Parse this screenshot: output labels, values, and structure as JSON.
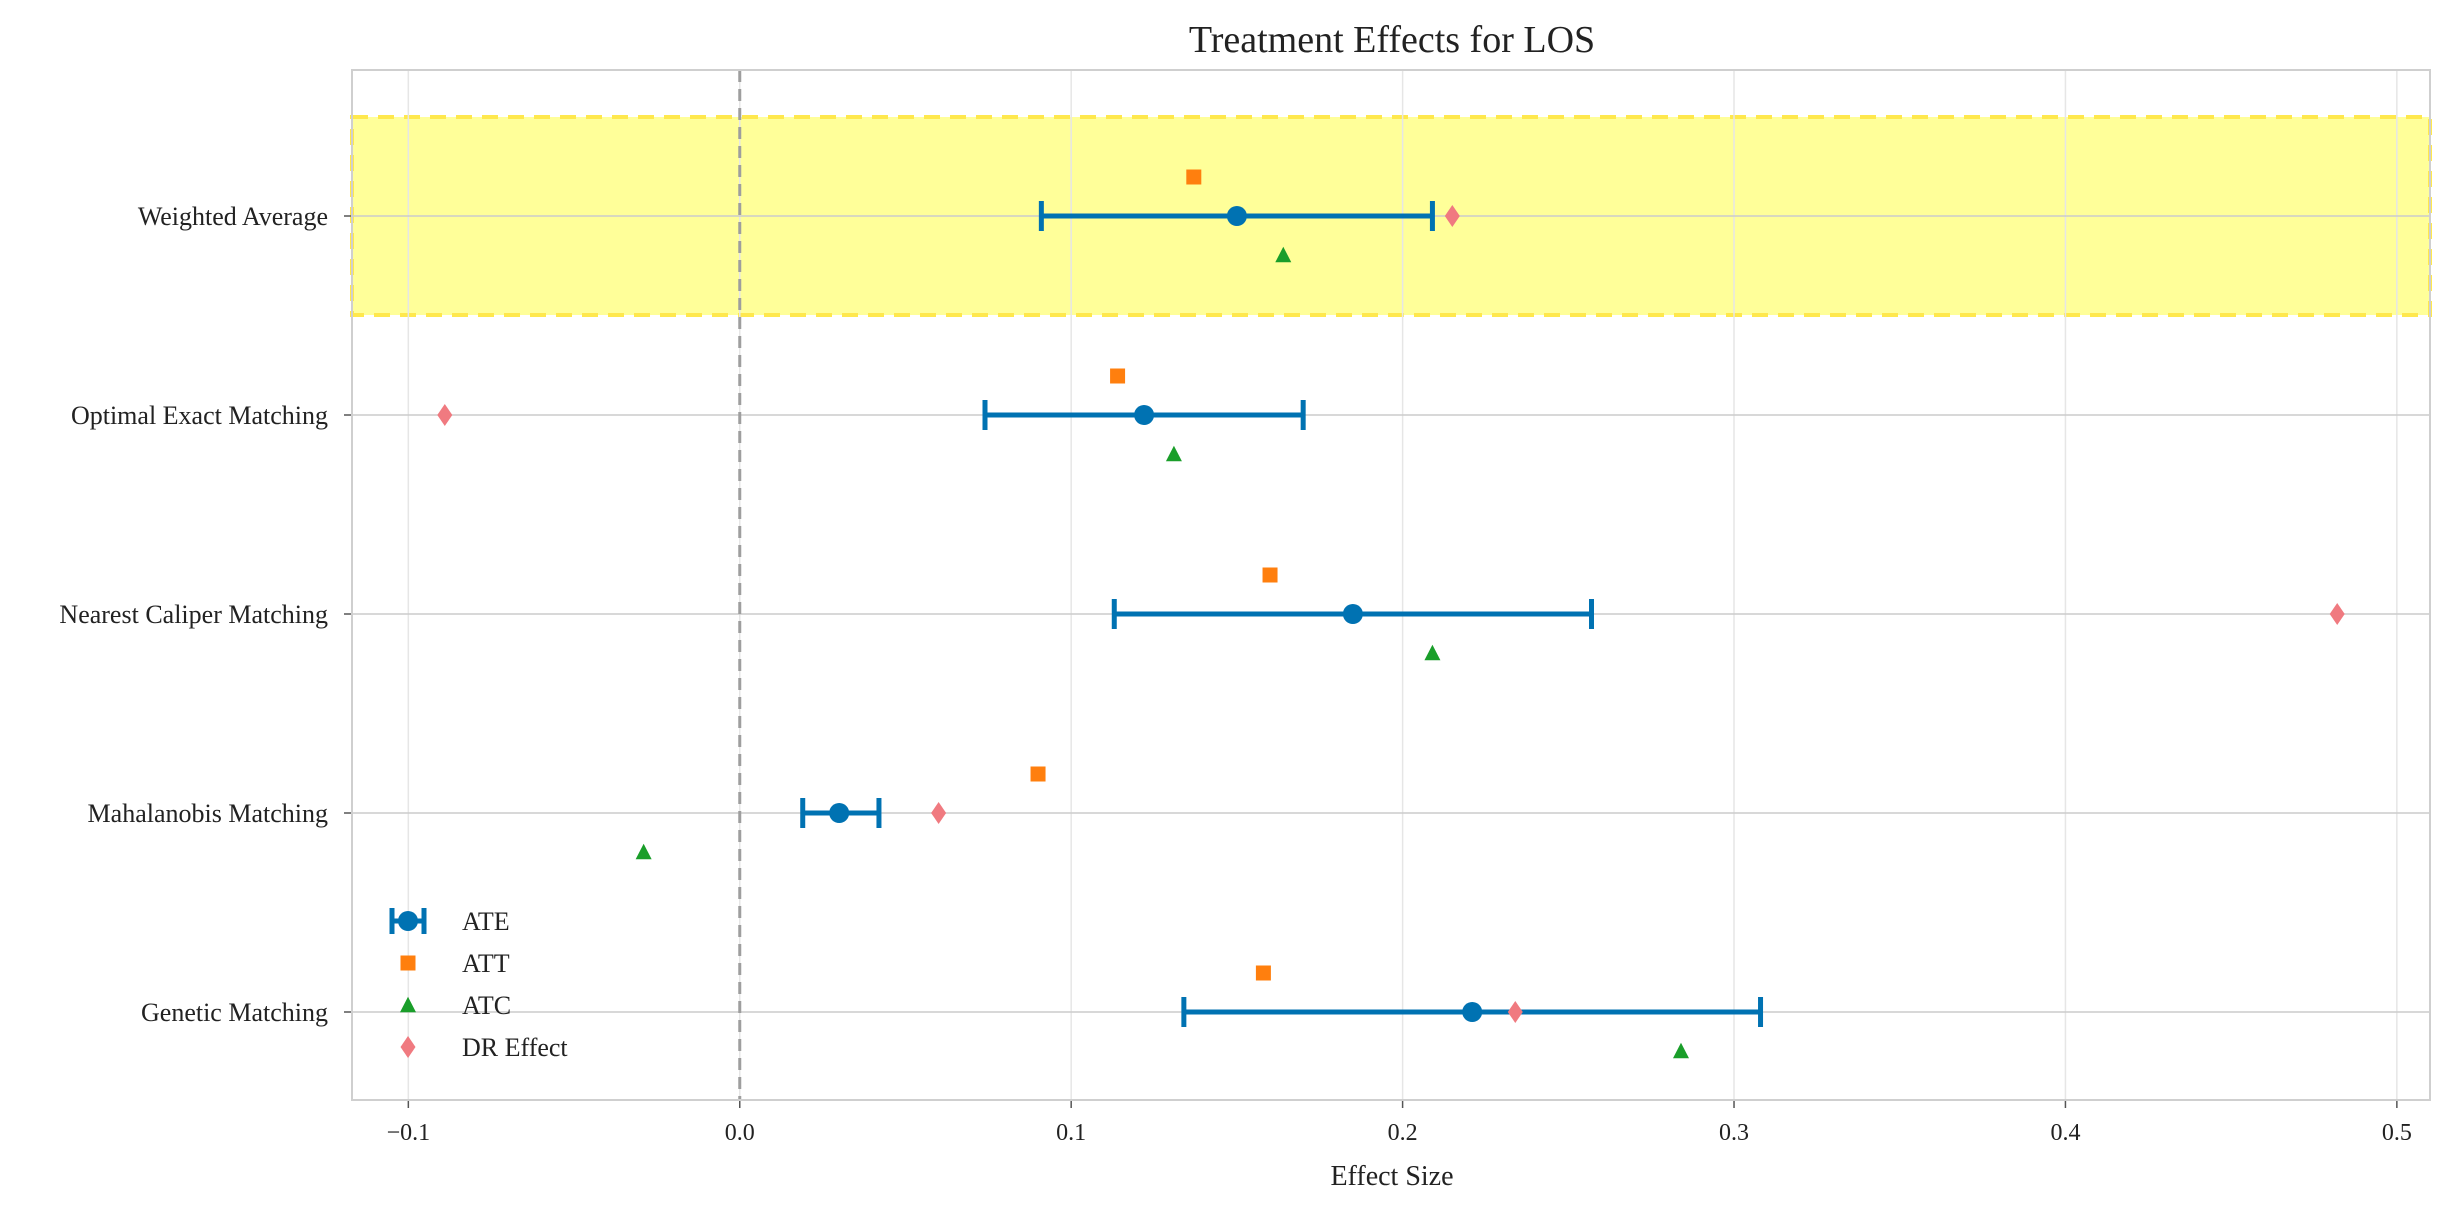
{
  "chart_data": {
    "type": "scatter",
    "title": "Treatment Effects for LOS",
    "xlabel": "Effect Size",
    "ylabel": "",
    "xlim": [
      -0.117,
      0.51
    ],
    "grid": true,
    "legend_placement": "lower-left",
    "x_ticks": [
      "−0.1",
      "0.0",
      "0.1",
      "0.2",
      "0.3",
      "0.4",
      "0.5"
    ],
    "x_tick_values": [
      -0.1,
      0.0,
      0.1,
      0.2,
      0.3,
      0.4,
      0.5
    ],
    "reference_line": 0.0,
    "categories": [
      "Weighted Average",
      "Optimal Exact Matching",
      "Nearest Caliper Matching",
      "Mahalanobis Matching",
      "Genetic Matching"
    ],
    "highlighted_category": "Weighted Average",
    "series": [
      {
        "name": "ATE",
        "marker": "circle-errorbar",
        "values": [
          0.15,
          0.122,
          0.185,
          0.03,
          0.221
        ],
        "ci_low": [
          0.091,
          0.074,
          0.113,
          0.019,
          0.134
        ],
        "ci_high": [
          0.209,
          0.17,
          0.257,
          0.042,
          0.308
        ]
      },
      {
        "name": "ATT",
        "marker": "square",
        "values": [
          0.137,
          0.114,
          0.16,
          0.09,
          0.158
        ]
      },
      {
        "name": "ATC",
        "marker": "triangle",
        "values": [
          0.164,
          0.131,
          0.209,
          -0.029,
          0.284
        ]
      },
      {
        "name": "DR Effect",
        "marker": "diamond",
        "values": [
          0.215,
          -0.089,
          0.482,
          0.06,
          0.234
        ]
      }
    ],
    "colors": {
      "ATE": "#0072b2",
      "ATT": "#ff7f0e",
      "ATC": "#1a9e2a",
      "DR Effect": "#f07a80",
      "highlight_fill": "#ffff99",
      "highlight_border": "#ffe84d",
      "reference_line": "#9e9e9e",
      "grid": "#e6e6e6",
      "row_line": "#cccccc",
      "frame": "#cfcfcf"
    }
  }
}
